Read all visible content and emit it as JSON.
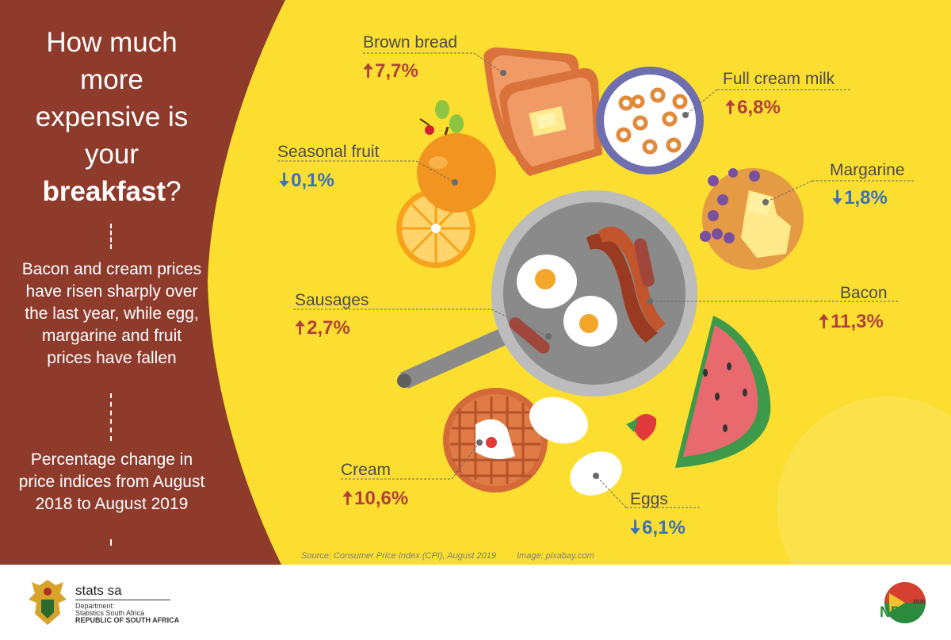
{
  "heading": {
    "line1": "How much",
    "line2": "more",
    "line3": "expensive is",
    "line4": "your",
    "bold": "breakfast",
    "question_mark": "?"
  },
  "summary": "Bacon and cream prices have risen sharply over the last year, while egg, margarine and fruit prices have fallen",
  "note": "Percentage change in price indices from August 2018 to August 2019",
  "items": [
    {
      "label": "Brown bread",
      "value": "7,7%",
      "direction": "up"
    },
    {
      "label": "Full cream milk",
      "value": "6,8%",
      "direction": "up"
    },
    {
      "label": "Seasonal fruit",
      "value": "0,1%",
      "direction": "down"
    },
    {
      "label": "Margarine",
      "value": "1,8%",
      "direction": "down"
    },
    {
      "label": "Sausages",
      "value": "2,7%",
      "direction": "up"
    },
    {
      "label": "Bacon",
      "value": "11,3%",
      "direction": "up"
    },
    {
      "label": "Cream",
      "value": "10,6%",
      "direction": "up"
    },
    {
      "label": "Eggs",
      "value": "6,1%",
      "direction": "down"
    }
  ],
  "arrows": {
    "up": "🠅",
    "down": "🠇"
  },
  "source": "Source: Consumer Price Index (CPI), August  2019",
  "image_credit": "Image: pixabay.com",
  "footer": {
    "brand": "stats sa",
    "dept_line1": "Department:",
    "dept_line2": "Statistics South Africa",
    "dept_line3": "REPUBLIC OF SOUTH AFRICA",
    "ndp": "NDP",
    "ndp_year": "2030"
  },
  "colors": {
    "background": "#fbde30",
    "panel": "#8e3b2c",
    "up": "#b0423a",
    "down": "#3a72b8"
  }
}
